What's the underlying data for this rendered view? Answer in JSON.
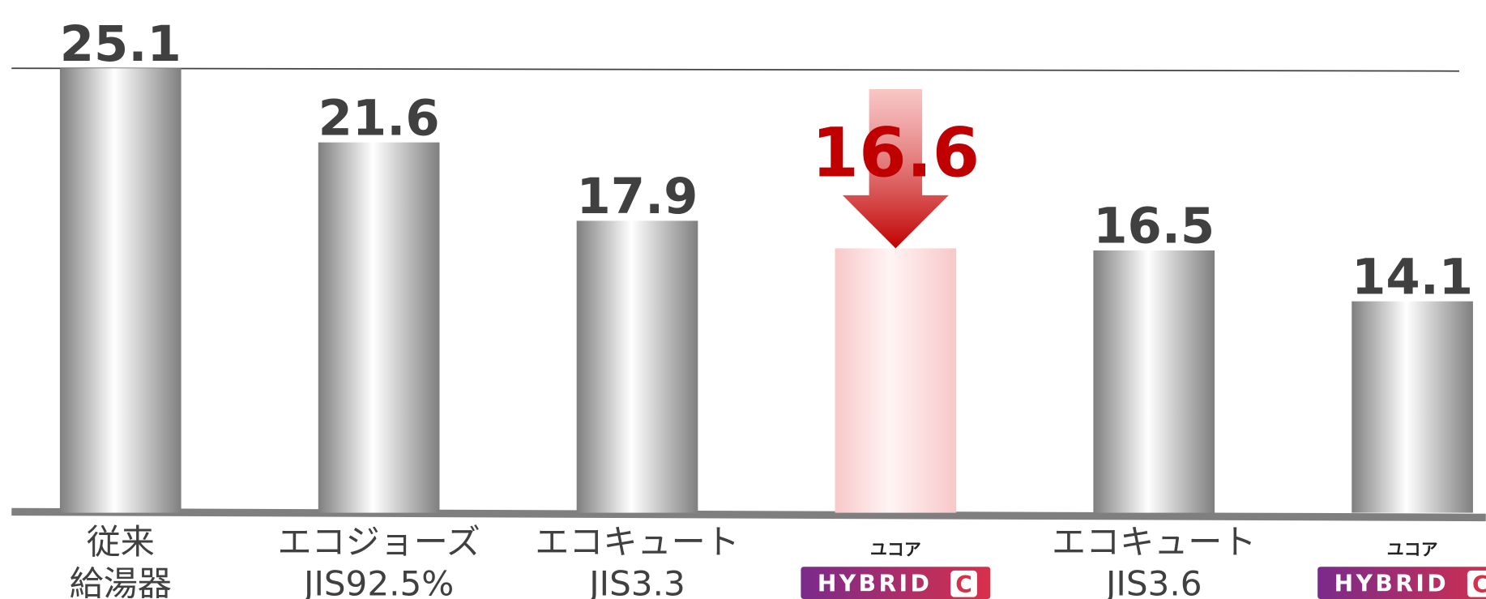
{
  "chart_data": {
    "type": "bar",
    "categories": [
      [
        "従来",
        "給湯器"
      ],
      [
        "エコジョーズ",
        "JIS92.5%"
      ],
      [
        "エコキュート",
        "JIS3.3"
      ],
      [
        "ユコア",
        "HYBRID",
        "C"
      ],
      [
        "エコキュート",
        "JIS3.6"
      ],
      [
        "ユコア",
        "HYBRID",
        "C"
      ]
    ],
    "values": [
      25.1,
      21.6,
      17.9,
      16.6,
      16.5,
      14.1
    ],
    "logo_categories": [
      3,
      5
    ],
    "ylim": [
      4.3,
      25.1
    ],
    "color": "#8c8c8c",
    "highlight": 3,
    "highlight_color": "#c00000"
  }
}
